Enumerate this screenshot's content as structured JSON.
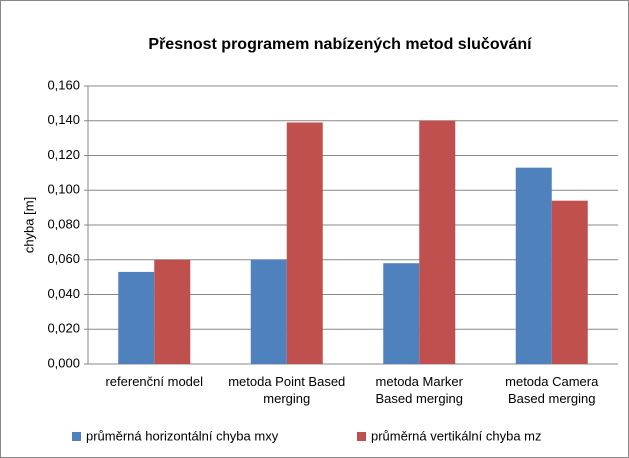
{
  "chart_data": {
    "type": "bar",
    "title": "Přesnost programem nabízených metod slučování",
    "y_label": "chyba [m]",
    "categories": [
      "referenční model",
      "metoda Point Based merging",
      "metoda Marker Based merging",
      "metoda Camera Based merging"
    ],
    "series": [
      {
        "name": "průměrná horizontální chyba mxy",
        "color": "#4f81bd",
        "values": [
          0.053,
          0.06,
          0.058,
          0.113
        ]
      },
      {
        "name": "průměrná vertikální chyba mz",
        "color": "#c0504d",
        "values": [
          0.06,
          0.139,
          0.14,
          0.094
        ]
      }
    ],
    "ylim": [
      0,
      0.16
    ],
    "yticks": [
      {
        "value": 0,
        "label": "0,000"
      },
      {
        "value": 0.02,
        "label": "0,020"
      },
      {
        "value": 0.04,
        "label": "0,040"
      },
      {
        "value": 0.06,
        "label": "0,060"
      },
      {
        "value": 0.08,
        "label": "0,080"
      },
      {
        "value": 0.1,
        "label": "0,100"
      },
      {
        "value": 0.12,
        "label": "0,120"
      },
      {
        "value": 0.14,
        "label": "0,140"
      },
      {
        "value": 0.16,
        "label": "0,160"
      }
    ],
    "grid": true
  }
}
